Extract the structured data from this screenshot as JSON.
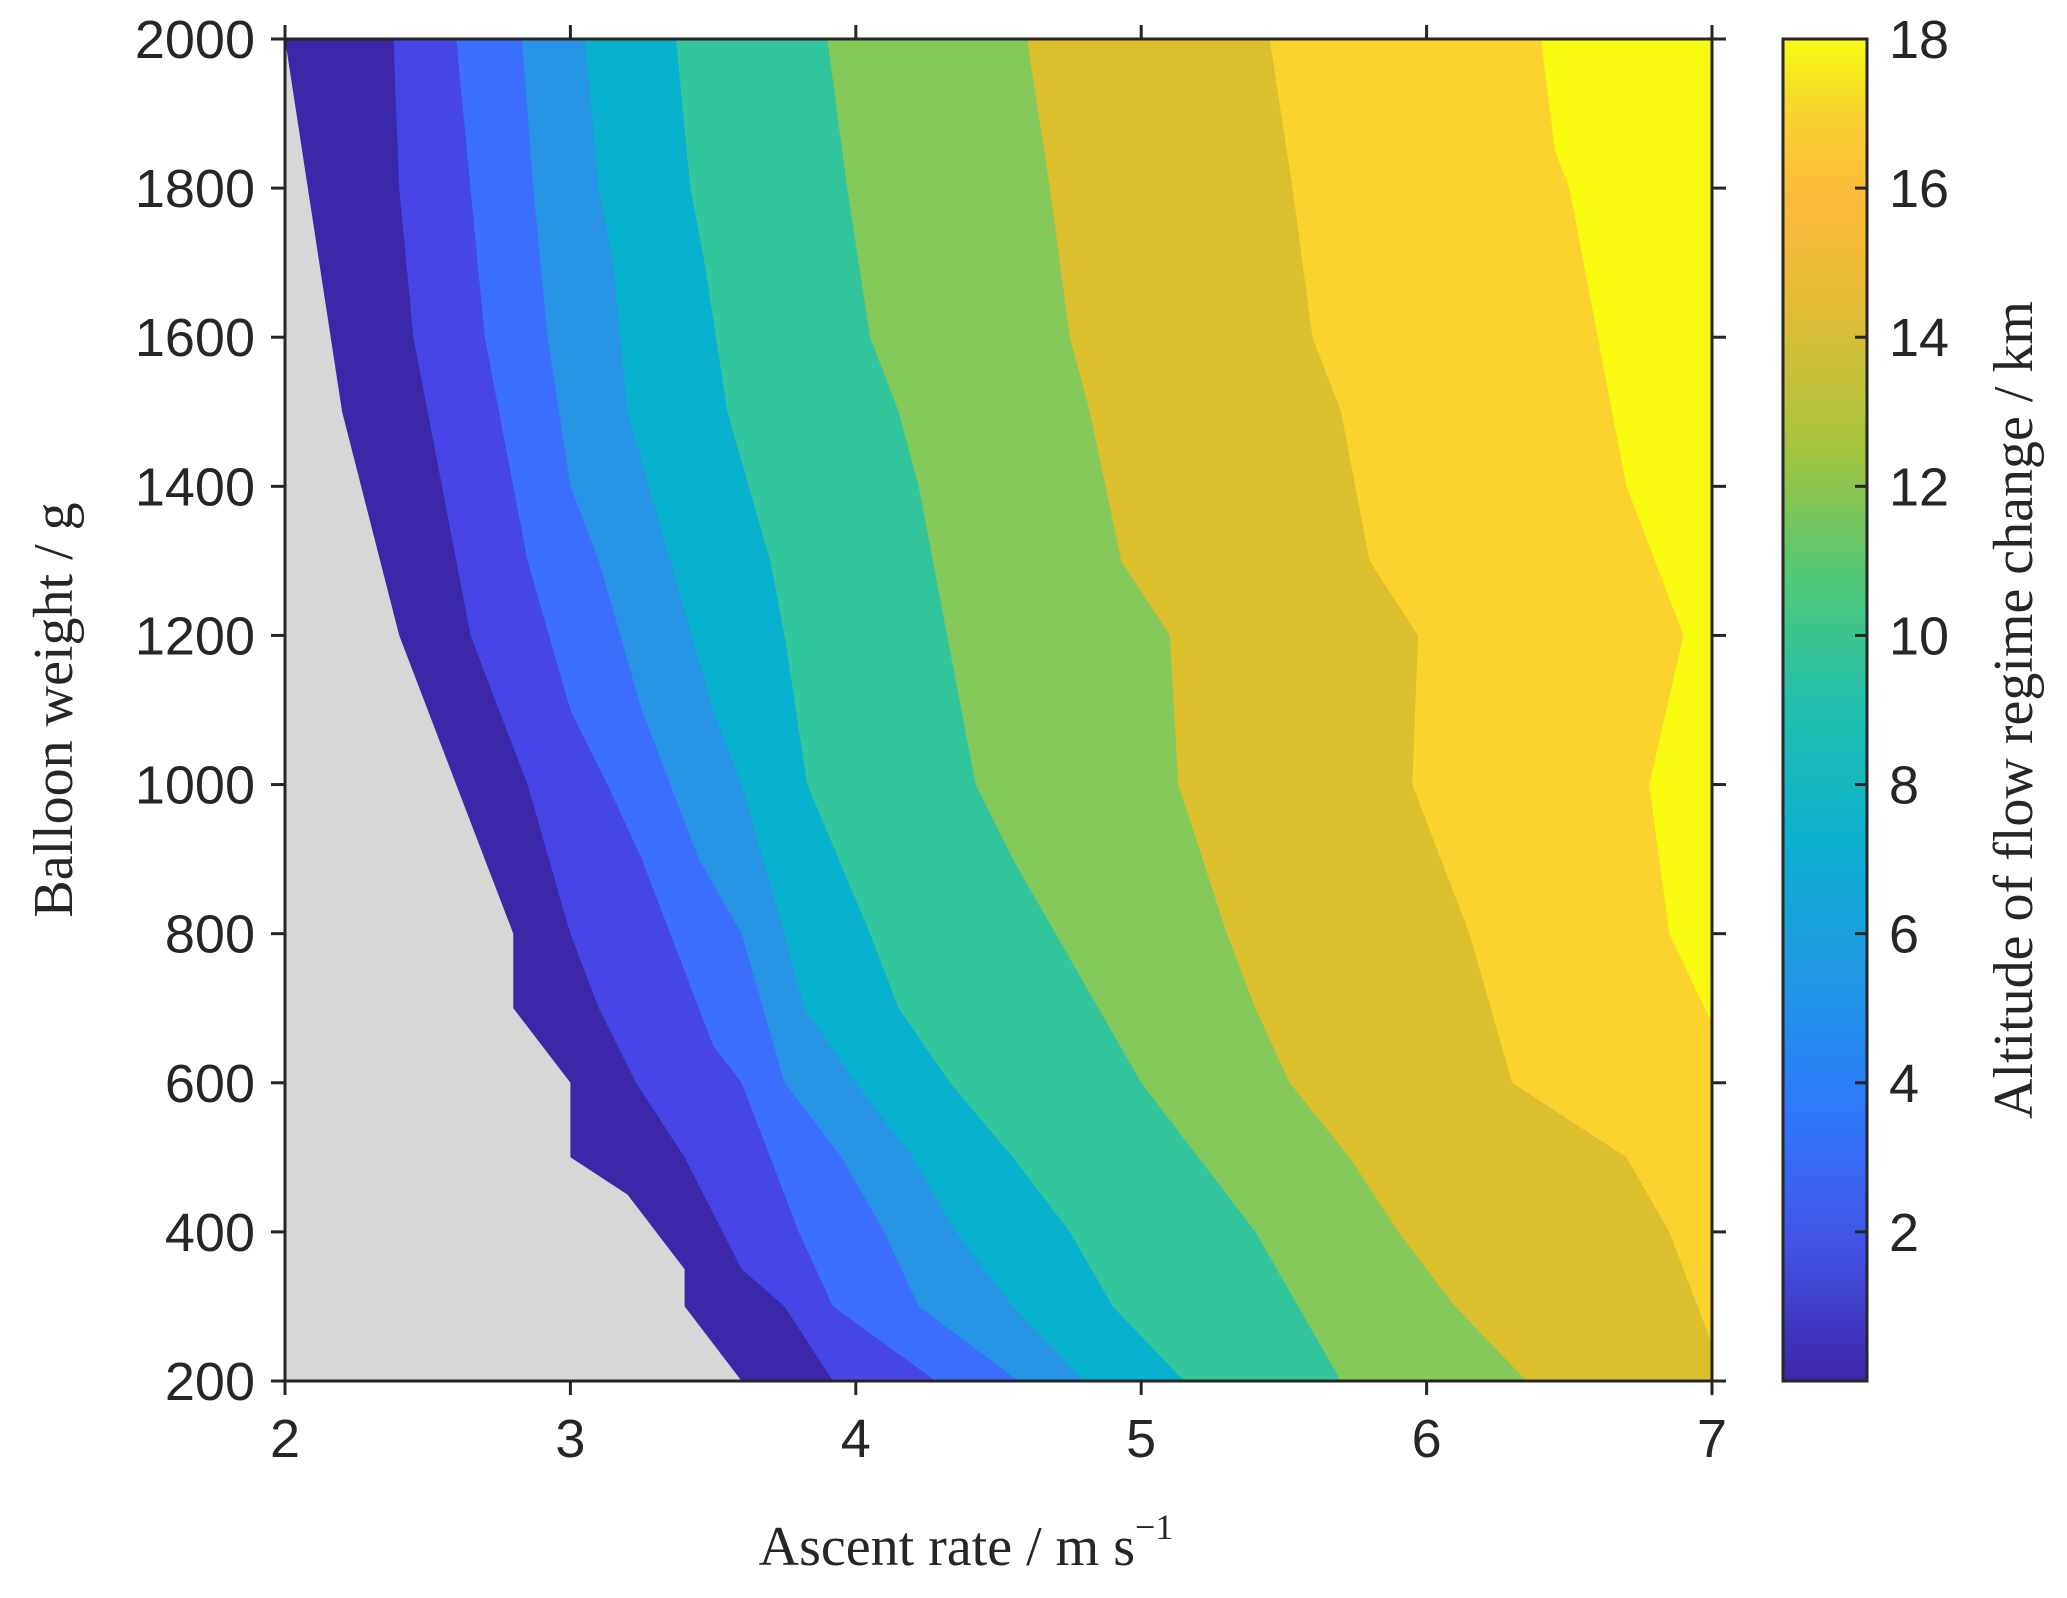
{
  "chart_data": {
    "type": "filled-contour",
    "xlabel": "Ascent rate / m s",
    "xlabel_exponent": "−1",
    "ylabel": "Balloon weight / g",
    "colorbar_label": "Altitude of flow regime change / km",
    "xlim": [
      2,
      7
    ],
    "ylim": [
      200,
      2000
    ],
    "clim": [
      0,
      18
    ],
    "xticks": [
      "2",
      "3",
      "4",
      "5",
      "6",
      "7"
    ],
    "yticks": [
      "200",
      "400",
      "600",
      "800",
      "1000",
      "1200",
      "1400",
      "1600",
      "1800",
      "2000"
    ],
    "colorbar_ticks": [
      "2",
      "4",
      "6",
      "8",
      "10",
      "12",
      "14",
      "16",
      "18"
    ],
    "background_color": "#d7d7d7",
    "levels": [
      {
        "color": "#3b28a8",
        "boundary": [
          [
            2.0,
            2000
          ],
          [
            2.2,
            1500
          ],
          [
            2.4,
            1200
          ],
          [
            2.6,
            1000
          ],
          [
            2.8,
            800
          ],
          [
            2.8,
            700
          ],
          [
            3.0,
            600
          ],
          [
            3.0,
            500
          ],
          [
            3.2,
            450
          ],
          [
            3.4,
            350
          ],
          [
            3.4,
            300
          ],
          [
            3.6,
            200
          ]
        ]
      },
      {
        "color": "#4646e8",
        "boundary": [
          [
            2.38,
            2000
          ],
          [
            2.4,
            1800
          ],
          [
            2.45,
            1600
          ],
          [
            2.55,
            1400
          ],
          [
            2.65,
            1200
          ],
          [
            2.75,
            1100
          ],
          [
            2.85,
            1000
          ],
          [
            3.0,
            800
          ],
          [
            3.1,
            700
          ],
          [
            3.23,
            600
          ],
          [
            3.4,
            500
          ],
          [
            3.6,
            350
          ],
          [
            3.75,
            300
          ],
          [
            3.92,
            200
          ]
        ]
      },
      {
        "color": "#3c6ffe",
        "boundary": [
          [
            2.6,
            2000
          ],
          [
            2.65,
            1800
          ],
          [
            2.7,
            1600
          ],
          [
            2.75,
            1500
          ],
          [
            2.85,
            1300
          ],
          [
            3.0,
            1100
          ],
          [
            3.13,
            1000
          ],
          [
            3.25,
            900
          ],
          [
            3.35,
            800
          ],
          [
            3.5,
            650
          ],
          [
            3.6,
            600
          ],
          [
            3.7,
            500
          ],
          [
            3.8,
            400
          ],
          [
            3.92,
            300
          ],
          [
            4.28,
            200
          ]
        ]
      },
      {
        "color": "#2894e6",
        "boundary": [
          [
            2.83,
            2000
          ],
          [
            2.87,
            1800
          ],
          [
            2.92,
            1600
          ],
          [
            3.0,
            1400
          ],
          [
            3.1,
            1300
          ],
          [
            3.25,
            1100
          ],
          [
            3.35,
            1000
          ],
          [
            3.45,
            900
          ],
          [
            3.6,
            800
          ],
          [
            3.75,
            600
          ],
          [
            3.95,
            500
          ],
          [
            4.1,
            400
          ],
          [
            4.22,
            300
          ],
          [
            4.57,
            200
          ]
        ]
      },
      {
        "color": "#08b1cd",
        "boundary": [
          [
            3.05,
            2000
          ],
          [
            3.1,
            1800
          ],
          [
            3.15,
            1700
          ],
          [
            3.2,
            1500
          ],
          [
            3.35,
            1300
          ],
          [
            3.5,
            1100
          ],
          [
            3.6,
            1000
          ],
          [
            3.75,
            800
          ],
          [
            3.82,
            700
          ],
          [
            4.0,
            600
          ],
          [
            4.2,
            500
          ],
          [
            4.35,
            400
          ],
          [
            4.55,
            300
          ],
          [
            4.8,
            200
          ]
        ]
      },
      {
        "color": "#33c59b",
        "boundary": [
          [
            3.37,
            2000
          ],
          [
            3.42,
            1800
          ],
          [
            3.47,
            1700
          ],
          [
            3.55,
            1500
          ],
          [
            3.7,
            1300
          ],
          [
            3.75,
            1200
          ],
          [
            3.83,
            1000
          ],
          [
            4.05,
            800
          ],
          [
            4.15,
            700
          ],
          [
            4.33,
            600
          ],
          [
            4.55,
            500
          ],
          [
            4.75,
            400
          ],
          [
            4.9,
            300
          ],
          [
            5.15,
            200
          ]
        ]
      },
      {
        "color": "#85c95a",
        "boundary": [
          [
            3.9,
            2000
          ],
          [
            3.97,
            1800
          ],
          [
            4.05,
            1600
          ],
          [
            4.15,
            1500
          ],
          [
            4.22,
            1400
          ],
          [
            4.32,
            1200
          ],
          [
            4.42,
            1000
          ],
          [
            4.55,
            900
          ],
          [
            4.7,
            800
          ],
          [
            4.85,
            700
          ],
          [
            5.0,
            600
          ],
          [
            5.2,
            500
          ],
          [
            5.4,
            400
          ],
          [
            5.55,
            300
          ],
          [
            5.7,
            200
          ]
        ]
      },
      {
        "color": "#dbbf2c",
        "boundary": [
          [
            4.6,
            2000
          ],
          [
            4.68,
            1800
          ],
          [
            4.75,
            1600
          ],
          [
            4.82,
            1500
          ],
          [
            4.93,
            1300
          ],
          [
            5.1,
            1200
          ],
          [
            5.13,
            1000
          ],
          [
            5.3,
            800
          ],
          [
            5.4,
            700
          ],
          [
            5.52,
            600
          ],
          [
            5.73,
            500
          ],
          [
            5.9,
            400
          ],
          [
            6.1,
            300
          ],
          [
            6.35,
            200
          ]
        ]
      },
      {
        "color": "#fbd22e",
        "boundary": [
          [
            5.45,
            2000
          ],
          [
            5.53,
            1800
          ],
          [
            5.6,
            1600
          ],
          [
            5.7,
            1500
          ],
          [
            5.8,
            1300
          ],
          [
            5.97,
            1200
          ],
          [
            5.95,
            1000
          ],
          [
            6.15,
            800
          ],
          [
            6.3,
            600
          ],
          [
            6.5,
            550
          ],
          [
            6.7,
            500
          ],
          [
            6.85,
            400
          ],
          [
            6.95,
            300
          ],
          [
            7.0,
            250
          ]
        ]
      },
      {
        "color": "#f8fa0f",
        "boundary": [
          [
            6.4,
            2000
          ],
          [
            6.45,
            1850
          ],
          [
            6.5,
            1800
          ],
          [
            6.6,
            1600
          ],
          [
            6.7,
            1400
          ],
          [
            6.9,
            1200
          ],
          [
            6.78,
            1000
          ],
          [
            6.85,
            800
          ],
          [
            7.0,
            680
          ]
        ]
      }
    ]
  }
}
